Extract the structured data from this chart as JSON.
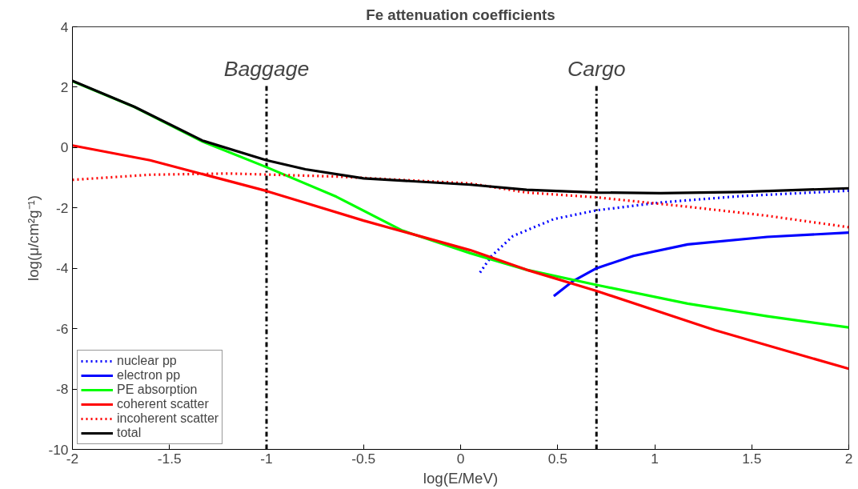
{
  "chart_data": {
    "type": "line",
    "title": "Fe attenuation coefficients",
    "xlabel": "log(E/MeV)",
    "ylabel": "log(μ/cm²g⁻¹)",
    "xlim": [
      -2,
      2
    ],
    "ylim": [
      -10,
      4
    ],
    "xticks": [
      -2,
      -1.5,
      -1,
      -0.5,
      0,
      0.5,
      1,
      1.5,
      2
    ],
    "yticks": [
      -10,
      -8,
      -6,
      -4,
      -2,
      0,
      2,
      4
    ],
    "grid": false,
    "legend": "bottom left",
    "marker": "none",
    "series": [
      {
        "name": "nuclear pp",
        "color": "#0000ff",
        "line_style": "dotted",
        "x": [
          0.1,
          0.16,
          0.27,
          0.48,
          0.7,
          1.03,
          1.44,
          2.0
        ],
        "values": [
          -4.14,
          -3.59,
          -2.93,
          -2.37,
          -2.08,
          -1.82,
          -1.61,
          -1.43
        ]
      },
      {
        "name": "electron pp",
        "color": "#0000ff",
        "line_style": "solid",
        "x": [
          0.48,
          0.58,
          0.7,
          0.89,
          1.17,
          1.58,
          2.0
        ],
        "values": [
          -4.92,
          -4.42,
          -4.0,
          -3.59,
          -3.21,
          -2.96,
          -2.82
        ]
      },
      {
        "name": "PE absorption",
        "color": "#00ff00",
        "line_style": "solid",
        "x": [
          -2.0,
          -1.68,
          -1.33,
          -1.0,
          -0.64,
          -0.3,
          0.05,
          0.34,
          0.7,
          1.17,
          1.58,
          2.0
        ],
        "values": [
          2.2,
          1.34,
          0.2,
          -0.65,
          -1.63,
          -2.75,
          -3.5,
          -4.05,
          -4.55,
          -5.17,
          -5.59,
          -5.96
        ]
      },
      {
        "name": "coherent scatter",
        "color": "#ff0000",
        "line_style": "solid",
        "x": [
          -2.0,
          -1.6,
          -1.0,
          -0.5,
          0.05,
          0.34,
          0.7,
          1.31,
          2.0
        ],
        "values": [
          0.07,
          -0.42,
          -1.44,
          -2.42,
          -3.4,
          -4.05,
          -4.75,
          -6.05,
          -7.33
        ]
      },
      {
        "name": "incoherent scatter",
        "color": "#ff0000",
        "line_style": "dotted",
        "x": [
          -2.0,
          -1.6,
          -1.19,
          -0.64,
          0.05,
          0.34,
          0.7,
          1.17,
          1.58,
          2.0
        ],
        "values": [
          -1.07,
          -0.9,
          -0.86,
          -0.96,
          -1.19,
          -1.49,
          -1.65,
          -1.96,
          -2.26,
          -2.64
        ]
      },
      {
        "name": "total",
        "color": "#000000",
        "line_style": "solid",
        "x": [
          -2.0,
          -1.68,
          -1.33,
          -1.0,
          -0.8,
          -0.5,
          0.05,
          0.34,
          0.7,
          1.03,
          1.44,
          2.0
        ],
        "values": [
          2.21,
          1.35,
          0.23,
          -0.42,
          -0.72,
          -1.02,
          -1.23,
          -1.4,
          -1.49,
          -1.51,
          -1.47,
          -1.35
        ]
      }
    ],
    "ref_lines": [
      {
        "axis": "x",
        "value": -1,
        "label": "Baggage",
        "color": "#000000",
        "line_style": "dashdot"
      },
      {
        "axis": "x",
        "value": 0.7,
        "label": "Cargo",
        "color": "#000000",
        "line_style": "dashdot"
      }
    ]
  }
}
